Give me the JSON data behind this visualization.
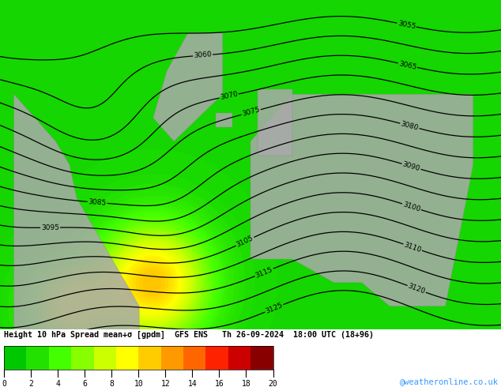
{
  "title": "Height 10 hPa Spread mean+σ [gpdm]  GFS ENS   Th 26-09-2024  18:00 UTC (18+96)",
  "cbar_ticks": [
    0,
    2,
    4,
    6,
    8,
    10,
    12,
    14,
    16,
    18,
    20
  ],
  "cbar_colors": [
    "#00c800",
    "#22e000",
    "#44ff00",
    "#88ff00",
    "#ccff00",
    "#ffff00",
    "#ffcc00",
    "#ff9900",
    "#ff6600",
    "#ff2200",
    "#cc0000",
    "#880000"
  ],
  "bg_color": "#33cc00",
  "contour_color": "#000000",
  "watermark": "@weatheronline.co.uk",
  "watermark_color": "#3399ff",
  "figwidth": 6.34,
  "figheight": 4.9,
  "spread_vmin": 0,
  "spread_vmax": 20
}
